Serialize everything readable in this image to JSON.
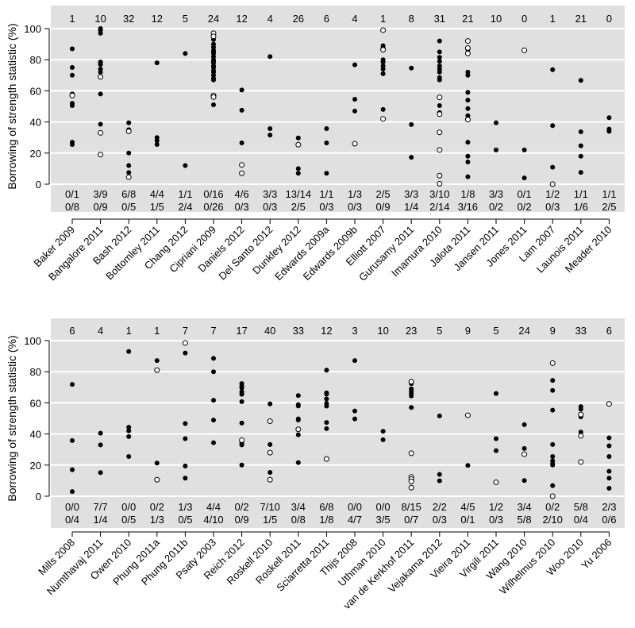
{
  "chart_data": [
    {
      "type": "scatter",
      "ylabel": "Borrowing of strength statistic (%)",
      "ylim": [
        0,
        100
      ],
      "yticks": [
        0,
        20,
        40,
        60,
        80,
        100
      ],
      "grid": true,
      "marker_colors": {
        "filled": "#000000",
        "open": "#ffffff"
      },
      "background": "#e0e0e0",
      "studies": [
        {
          "name": "Baker 2009",
          "count": "1",
          "frac_top": "0/1",
          "frac_bottom": "0/8",
          "filled": [
            87,
            75,
            70,
            58,
            52,
            50.5,
            27,
            25.5
          ],
          "open": [
            57
          ]
        },
        {
          "name": "Bangalore 2011",
          "count": "10",
          "frac_top": "3/9",
          "frac_bottom": "0/9",
          "filled": [
            100,
            99,
            97,
            78.5,
            77,
            74,
            72,
            58,
            38.5
          ],
          "open": [
            69,
            33,
            19
          ]
        },
        {
          "name": "Bash 2012",
          "count": "32",
          "frac_top": "6/8",
          "frac_bottom": "0/5",
          "filled": [
            39.5,
            35,
            20,
            12,
            7.5
          ],
          "open": [
            34,
            4.5
          ]
        },
        {
          "name": "Bottomley 2011",
          "count": "12",
          "frac_top": "4/4",
          "frac_bottom": "1/5",
          "filled": [
            78,
            30,
            28,
            25.5
          ],
          "open": []
        },
        {
          "name": "Chang 2012",
          "count": "5",
          "frac_top": "1/1",
          "frac_bottom": "2/4",
          "filled": [
            84,
            12
          ],
          "open": []
        },
        {
          "name": "Cipriani 2009",
          "count": "24",
          "frac_top": "0/16",
          "frac_bottom": "0/26",
          "filled": [
            93,
            90,
            88,
            86,
            85,
            84,
            82,
            80,
            79,
            78,
            76,
            75,
            73,
            72,
            70,
            68,
            67,
            51
          ],
          "open": [
            97,
            95,
            57,
            56
          ]
        },
        {
          "name": "Daniels 2012",
          "count": "12",
          "frac_top": "4/6",
          "frac_bottom": "0/3",
          "filled": [
            60.5,
            47.5,
            26.5
          ],
          "open": [
            12.4,
            7
          ]
        },
        {
          "name": "Del Santo 2012",
          "count": "4",
          "frac_top": "3/3",
          "frac_bottom": "0/3",
          "filled": [
            82,
            35.7,
            31.6
          ],
          "open": []
        },
        {
          "name": "Dunkley 2012",
          "count": "26",
          "frac_top": "13/14",
          "frac_bottom": "2/5",
          "filled": [
            29.7,
            10,
            7
          ],
          "open": [
            25.4
          ]
        },
        {
          "name": "Edwards 2009a",
          "count": "6",
          "frac_top": "1/1",
          "frac_bottom": "0/3",
          "filled": [
            35.7,
            26.5,
            7
          ],
          "open": []
        },
        {
          "name": "Edwards 2009b",
          "count": "4",
          "frac_top": "1/3",
          "frac_bottom": "0/3",
          "filled": [
            76.7,
            54.6,
            47
          ],
          "open": [
            26
          ]
        },
        {
          "name": "Elliott 2007",
          "count": "1",
          "frac_top": "2/5",
          "frac_bottom": "0/9",
          "filled": [
            89,
            87.8,
            80,
            78.5,
            76,
            74,
            71,
            48
          ],
          "open": [
            99,
            86.4,
            42
          ]
        },
        {
          "name": "Gurusamy 2011",
          "count": "8",
          "frac_top": "3/3",
          "frac_bottom": "1/4",
          "filled": [
            74.6,
            38.3,
            17.3
          ],
          "open": []
        },
        {
          "name": "Imamura 2010",
          "count": "31",
          "frac_top": "3/10",
          "frac_bottom": "2/14",
          "filled": [
            92,
            85,
            81.5,
            79,
            76,
            74,
            72,
            68.5,
            67,
            50.5,
            46
          ],
          "open": [
            55.8,
            45,
            33.3,
            22,
            5.5,
            0.3
          ]
        },
        {
          "name": "Jalota 2011",
          "count": "21",
          "frac_top": "1/8",
          "frac_bottom": "3/16",
          "filled": [
            86.5,
            72,
            70,
            59,
            54,
            48.6,
            44,
            27,
            18,
            14.3,
            4.8
          ],
          "open": [
            92,
            87.5,
            84,
            41.5
          ]
        },
        {
          "name": "Jansen 2011",
          "count": "10",
          "frac_top": "3/3",
          "frac_bottom": "0/2",
          "filled": [
            39.5,
            22
          ],
          "open": []
        },
        {
          "name": "Jones 2011",
          "count": "0",
          "frac_top": "0/1",
          "frac_bottom": "0/2",
          "filled": [
            22,
            4
          ],
          "open": [
            86
          ]
        },
        {
          "name": "Lam 2007",
          "count": "1",
          "frac_top": "1/2",
          "frac_bottom": "0/3",
          "filled": [
            73.6,
            37.6,
            10.9
          ],
          "open": [
            0
          ]
        },
        {
          "name": "Launois 2011",
          "count": "21",
          "frac_top": "1/1",
          "frac_bottom": "1/6",
          "filled": [
            66.7,
            33.7,
            24.7,
            18,
            7.6
          ],
          "open": []
        },
        {
          "name": "Meader 2010",
          "count": "0",
          "frac_top": "1/1",
          "frac_bottom": "2/5",
          "filled": [
            42.7,
            35.4,
            34
          ],
          "open": []
        }
      ]
    },
    {
      "type": "scatter",
      "ylabel": "Borrowing of strength statistic (%)",
      "ylim": [
        0,
        100
      ],
      "yticks": [
        0,
        20,
        40,
        60,
        80,
        100
      ],
      "grid": true,
      "marker_colors": {
        "filled": "#000000",
        "open": "#ffffff"
      },
      "background": "#e0e0e0",
      "studies": [
        {
          "name": "Mills 2008",
          "count": "6",
          "frac_top": "0/0",
          "frac_bottom": "0/4",
          "filled": [
            71.9,
            35.8,
            17,
            3
          ],
          "open": []
        },
        {
          "name": "Numthavaj 2011",
          "count": "4",
          "frac_top": "7/7",
          "frac_bottom": "1/4",
          "filled": [
            40.5,
            33,
            15.2
          ],
          "open": []
        },
        {
          "name": "Owen 2010",
          "count": "1",
          "frac_top": "0/0",
          "frac_bottom": "0/5",
          "filled": [
            93,
            44.3,
            42,
            38.3,
            25.5
          ],
          "open": []
        },
        {
          "name": "Phung 2011a",
          "count": "1",
          "frac_top": "0/2",
          "frac_bottom": "1/3",
          "filled": [
            87.2,
            21.3
          ],
          "open": [
            81,
            10.6
          ]
        },
        {
          "name": "Phung 2011b",
          "count": "7",
          "frac_top": "1/3",
          "frac_bottom": "0/5",
          "filled": [
            92,
            46.7,
            37,
            19.4,
            11.6
          ],
          "open": [
            98.5
          ]
        },
        {
          "name": "Psaty 2003",
          "count": "7",
          "frac_top": "4/4",
          "frac_bottom": "4/10",
          "filled": [
            88.6,
            80,
            61.7,
            48.9,
            34.4
          ],
          "open": []
        },
        {
          "name": "Reich 2012",
          "count": "17",
          "frac_top": "0/2",
          "frac_bottom": "0/9",
          "filled": [
            72.4,
            70.7,
            69.5,
            67,
            65.5,
            60.8,
            47,
            34,
            33,
            20
          ],
          "open": [
            36
          ]
        },
        {
          "name": "Roskell 2010",
          "count": "40",
          "frac_top": "7/10",
          "frac_bottom": "1/5",
          "filled": [
            59.3,
            33.2,
            15.3
          ],
          "open": [
            48.2,
            28,
            10.6
          ]
        },
        {
          "name": "Roskell 2011",
          "count": "33",
          "frac_top": "3/4",
          "frac_bottom": "0/8",
          "filled": [
            64.7,
            58.8,
            58,
            49.7,
            49,
            39.5,
            21.6
          ],
          "open": [
            43
          ]
        },
        {
          "name": "Sciarretta 2011",
          "count": "12",
          "frac_top": "6/8",
          "frac_bottom": "1/8",
          "filled": [
            81,
            66.4,
            65.6,
            62.5,
            59.6,
            57.9,
            47.4,
            43.4
          ],
          "open": [
            23.9
          ]
        },
        {
          "name": "Thijs 2008",
          "count": "3",
          "frac_top": "0/0",
          "frac_bottom": "4/7",
          "filled": [
            87.2,
            54.8,
            49.7
          ],
          "open": []
        },
        {
          "name": "Uthman 2010",
          "count": "10",
          "frac_top": "0/0",
          "frac_bottom": "3/5",
          "filled": [
            41.7,
            36.3
          ],
          "open": []
        },
        {
          "name": "van de Kerkhof 2011",
          "count": "23",
          "frac_top": "8/15",
          "frac_bottom": "0/7",
          "filled": [
            72.4,
            69,
            67.5,
            66,
            64.4,
            57
          ],
          "open": [
            73.6,
            27.6,
            12.4,
            11,
            9.5,
            5.5
          ]
        },
        {
          "name": "Vejakama 2012",
          "count": "5",
          "frac_top": "2/2",
          "frac_bottom": "0/3",
          "filled": [
            51.6,
            14,
            9.9
          ],
          "open": []
        },
        {
          "name": "Vieira 2011",
          "count": "9",
          "frac_top": "4/5",
          "frac_bottom": "0/1",
          "filled": [
            19.8
          ],
          "open": [
            52
          ]
        },
        {
          "name": "Virgili 2011",
          "count": "5",
          "frac_top": "1/2",
          "frac_bottom": "0/3",
          "filled": [
            66,
            37,
            29.3
          ],
          "open": [
            8.9
          ]
        },
        {
          "name": "Wang 2010",
          "count": "24",
          "frac_top": "3/4",
          "frac_bottom": "5/8",
          "filled": [
            46,
            30.7,
            10.1
          ],
          "open": [
            27
          ]
        },
        {
          "name": "Wilhelmus 2010",
          "count": "9",
          "frac_top": "0/2",
          "frac_bottom": "2/10",
          "filled": [
            74.4,
            68,
            55.3,
            33.2,
            25.5,
            22.8,
            21,
            20,
            6.8
          ],
          "open": [
            85.5,
            0
          ]
        },
        {
          "name": "Woo 2010",
          "count": "33",
          "frac_top": "5/8",
          "frac_bottom": "0/4",
          "filled": [
            57.6,
            55.9,
            51,
            41.2
          ],
          "open": [
            52.5,
            38.8,
            22
          ]
        },
        {
          "name": "Yu 2006",
          "count": "6",
          "frac_top": "2/3",
          "frac_bottom": "0/6",
          "filled": [
            37.5,
            32.4,
            25.5,
            16,
            11.6,
            5.1
          ],
          "open": [
            59.3
          ]
        }
      ]
    }
  ]
}
